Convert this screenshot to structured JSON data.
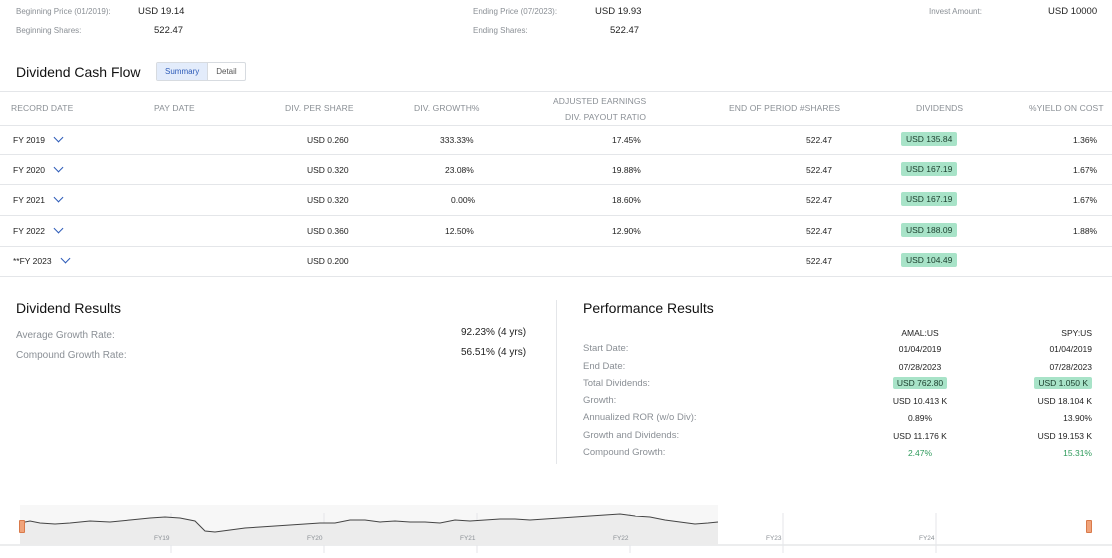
{
  "summary": {
    "beginning_price_label": "Beginning Price (01/2019):",
    "beginning_price_value": "USD 19.14",
    "beginning_shares_label": "Beginning Shares:",
    "beginning_shares_value": "522.47",
    "ending_price_label": "Ending Price (07/2023):",
    "ending_price_value": "USD 19.93",
    "ending_shares_label": "Ending Shares:",
    "ending_shares_value": "522.47",
    "invest_label": "Invest Amount:",
    "invest_value": "USD 10000"
  },
  "cashflow": {
    "title": "Dividend Cash Flow",
    "tab_summary": "Summary",
    "tab_detail": "Detail",
    "headers": {
      "record_date": "RECORD DATE",
      "pay_date": "PAY DATE",
      "div_per_share": "DIV. PER SHARE",
      "div_growth": "DIV. GROWTH%",
      "adj_line1": "ADJUSTED EARNINGS",
      "adj_line2": "DIV. PAYOUT RATIO",
      "end_shares": "END OF PERIOD #SHARES",
      "dividends": "DIVIDENDS",
      "yield": "%YIELD ON COST"
    },
    "rows": [
      {
        "period": "FY 2019",
        "dps": "USD 0.260",
        "growth": "333.33%",
        "payout": "17.45%",
        "shares": "522.47",
        "dividends": "USD 135.84",
        "yield": "1.36%"
      },
      {
        "period": "FY 2020",
        "dps": "USD 0.320",
        "growth": "23.08%",
        "payout": "19.88%",
        "shares": "522.47",
        "dividends": "USD 167.19",
        "yield": "1.67%"
      },
      {
        "period": "FY 2021",
        "dps": "USD 0.320",
        "growth": "0.00%",
        "payout": "18.60%",
        "shares": "522.47",
        "dividends": "USD 167.19",
        "yield": "1.67%"
      },
      {
        "period": "FY 2022",
        "dps": "USD 0.360",
        "growth": "12.50%",
        "payout": "12.90%",
        "shares": "522.47",
        "dividends": "USD 188.09",
        "yield": "1.88%"
      },
      {
        "period": "**FY 2023",
        "dps": "USD 0.200",
        "growth": "",
        "payout": "",
        "shares": "522.47",
        "dividends": "USD 104.49",
        "yield": ""
      }
    ]
  },
  "dividend_results": {
    "title": "Dividend Results",
    "avg_label": "Average Growth Rate:",
    "avg_value": "92.23% (4 yrs)",
    "cagr_label": "Compound Growth Rate:",
    "cagr_value": "56.51% (4 yrs)"
  },
  "performance": {
    "title": "Performance Results",
    "col1": "AMAL:US",
    "col2": "SPY:US",
    "rows": [
      {
        "label": "Start Date:",
        "v1": "01/04/2019",
        "v2": "01/04/2019"
      },
      {
        "label": "End Date:",
        "v1": "07/28/2023",
        "v2": "07/28/2023"
      },
      {
        "label": "Total Dividends:",
        "v1": "USD 762.80",
        "v2": "USD 1.050 K"
      },
      {
        "label": "Growth:",
        "v1": "USD 10.413 K",
        "v2": "USD 18.104 K"
      },
      {
        "label": "Annualized ROR (w/o Div):",
        "v1": "0.89%",
        "v2": "13.90%"
      },
      {
        "label": "Growth and Dividends:",
        "v1": "USD 11.176 K",
        "v2": "USD 19.153 K"
      },
      {
        "label": "Compound Growth:",
        "v1": "2.47%",
        "v2": "15.31%"
      }
    ]
  },
  "navigator": {
    "ticks": [
      "FY19",
      "FY20",
      "FY21",
      "FY22",
      "FY23",
      "FY24"
    ]
  },
  "colors": {
    "accent": "#2d5bb8",
    "badge_green": "#a8e3c8",
    "positive": "#2e9a5b",
    "handle": "#f0a37a"
  }
}
